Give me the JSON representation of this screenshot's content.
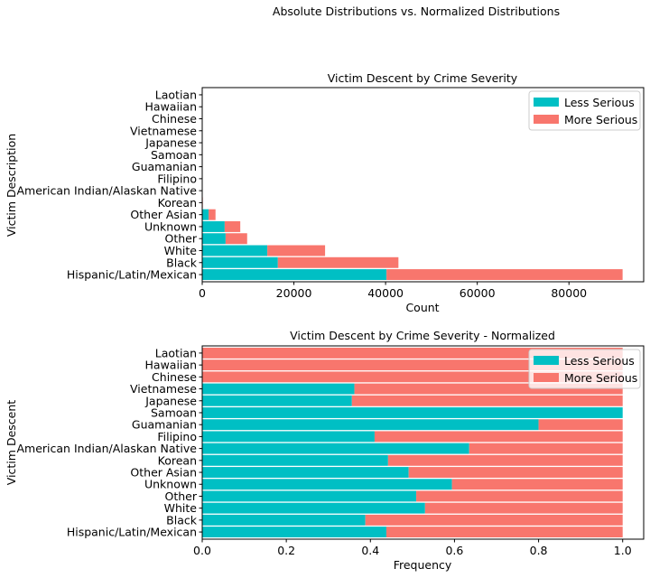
{
  "figure": {
    "suptitle": "Absolute Distributions vs. Normalized Distributions"
  },
  "colors": {
    "less_serious": "#00bfc4",
    "more_serious": "#f8766d"
  },
  "chart_data": [
    {
      "type": "bar",
      "orientation": "horizontal",
      "stacked": true,
      "title": "Victim Descent by Crime Severity",
      "xlabel": "Count",
      "ylabel": "Victim Description",
      "categories": [
        "Hispanic/Latin/Mexican",
        "Black",
        "White",
        "Other",
        "Unknown",
        "Other Asian",
        "Korean",
        "American Indian/Alaskan Native",
        "Filipino",
        "Guamanian",
        "Samoan",
        "Japanese",
        "Vietnamese",
        "Chinese",
        "Hawaiian",
        "Laotian"
      ],
      "series": [
        {
          "name": "Less Serious",
          "values": [
            40200,
            16500,
            14200,
            5100,
            4900,
            1400,
            60,
            30,
            10,
            8,
            4,
            5,
            4,
            0,
            0,
            0
          ]
        },
        {
          "name": "More Serious",
          "values": [
            51500,
            26300,
            12600,
            4700,
            3400,
            1500,
            70,
            20,
            15,
            2,
            0,
            9,
            7,
            5,
            3,
            2
          ]
        }
      ],
      "xlim": [
        0,
        96300
      ],
      "xticks": [
        0,
        20000,
        40000,
        60000,
        80000
      ],
      "xtick_labels": [
        "0",
        "20000",
        "40000",
        "60000",
        "80000"
      ],
      "grid": false,
      "legend_position": "top-right"
    },
    {
      "type": "bar",
      "orientation": "horizontal",
      "stacked": true,
      "title": "Victim Descent by Crime Severity - Normalized",
      "xlabel": "Frequency",
      "ylabel": "Victim Descent",
      "categories": [
        "Hispanic/Latin/Mexican",
        "Black",
        "White",
        "Other",
        "Unknown",
        "Other Asian",
        "Korean",
        "American Indian/Alaskan Native",
        "Filipino",
        "Guamanian",
        "Samoan",
        "Japanese",
        "Vietnamese",
        "Chinese",
        "Hawaiian",
        "Laotian"
      ],
      "series": [
        {
          "name": "Less Serious",
          "values": [
            0.438,
            0.388,
            0.53,
            0.509,
            0.594,
            0.491,
            0.442,
            0.635,
            0.41,
            0.8,
            1.0,
            0.356,
            0.362,
            0.0,
            0.0,
            0.0
          ]
        },
        {
          "name": "More Serious",
          "values": [
            0.562,
            0.612,
            0.47,
            0.491,
            0.406,
            0.509,
            0.558,
            0.365,
            0.59,
            0.2,
            0.0,
            0.644,
            0.638,
            1.0,
            1.0,
            1.0
          ]
        }
      ],
      "xlim": [
        0,
        1.05
      ],
      "xticks": [
        0.0,
        0.2,
        0.4,
        0.6,
        0.8,
        1.0
      ],
      "xtick_labels": [
        "0.0",
        "0.2",
        "0.4",
        "0.6",
        "0.8",
        "1.0"
      ],
      "grid": false,
      "legend_position": "top-right"
    }
  ]
}
